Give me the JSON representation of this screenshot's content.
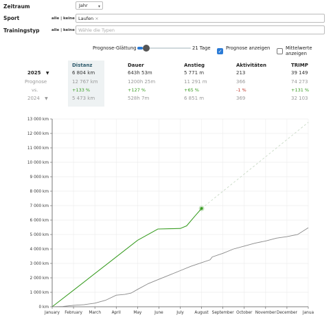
{
  "filters": {
    "zeitraum_label": "Zeitraum",
    "zeitraum_value": "Jahr",
    "sport_label": "Sport",
    "sport_toggle": "alle | keine",
    "sport_value": "Laufen",
    "sport_remove": "×",
    "trainingstyp_label": "Trainingstyp",
    "trainingstyp_toggle": "alle | keine",
    "trainingstyp_placeholder": "Wähle die Typen"
  },
  "options": {
    "smoothing_label": "Prognose-Glättung",
    "smoothing_value_text": "21 Tage",
    "smoothing_fraction": 0.1,
    "show_forecast_label": "Prognose anzeigen",
    "show_forecast_checked": true,
    "show_means_label": "Mittelwerte anzeigen",
    "show_means_checked": false
  },
  "stats": {
    "headers": [
      "Distanz",
      "Dauer",
      "Anstieg",
      "Aktivitäten",
      "TRIMP"
    ],
    "current_year": "2025",
    "current": [
      "6 804 km",
      "643h 53m",
      "5 771 m",
      "213",
      "39 149"
    ],
    "forecast_label": "Prognose",
    "forecast": [
      "12 767 km",
      "1200h 25m",
      "11 291 m",
      "366",
      "74 273"
    ],
    "vs_label": "vs.",
    "vs": [
      "+133 %",
      "+127 %",
      "+65 %",
      "-1 %",
      "+131 %"
    ],
    "prev_year": "2024",
    "prev": [
      "5 473 km",
      "528h 7m",
      "6 851 m",
      "369",
      "32 103"
    ]
  },
  "colors": {
    "current": "#3a9d23",
    "previous": "#888888",
    "forecast": "#c8d9c5",
    "accent": "#2b7bd6",
    "header_bg": "#eef2f3"
  },
  "chart_data": {
    "type": "line",
    "ylim": [
      0,
      13000
    ],
    "y_ticks": [
      0,
      1000,
      2000,
      3000,
      4000,
      5000,
      6000,
      7000,
      8000,
      9000,
      10000,
      11000,
      12000,
      13000
    ],
    "y_tick_labels": [
      "0 km",
      "1 000 km",
      "2 000 km",
      "3 000 km",
      "4 000 km",
      "5 000 km",
      "6 000 km",
      "7 000 km",
      "8 000 km",
      "9 000 km",
      "10 000 km",
      "11 000 km",
      "12 000 km",
      "13 000 km"
    ],
    "x_tick_labels": [
      "January",
      "February",
      "March",
      "April",
      "May",
      "June",
      "July",
      "August",
      "September",
      "October",
      "November",
      "December",
      "Janua"
    ],
    "grid": true,
    "series": [
      {
        "key": "current",
        "x": [
          0,
          1,
          2,
          3,
          4,
          4.95,
          5.5,
          6.0,
          6.3,
          6.7,
          7.0
        ],
        "values": [
          0,
          1150,
          2300,
          3450,
          4600,
          5380,
          5400,
          5420,
          5600,
          6300,
          6804
        ]
      },
      {
        "key": "forecast",
        "x": [
          7.0,
          12.0
        ],
        "values": [
          6804,
          12767
        ]
      },
      {
        "key": "previous",
        "x": [
          0,
          0.5,
          1,
          1.5,
          2,
          2.5,
          3,
          3.4,
          3.7,
          4,
          4.5,
          5,
          5.5,
          6,
          6.5,
          7,
          7.4,
          7.5,
          8,
          8.5,
          9,
          9.5,
          10,
          10.5,
          11,
          11.5,
          12
        ],
        "values": [
          0,
          20,
          100,
          150,
          250,
          450,
          800,
          850,
          950,
          1200,
          1600,
          1900,
          2200,
          2500,
          2800,
          3050,
          3250,
          3450,
          3700,
          4000,
          4200,
          4400,
          4550,
          4750,
          4850,
          5000,
          5473
        ]
      }
    ]
  }
}
